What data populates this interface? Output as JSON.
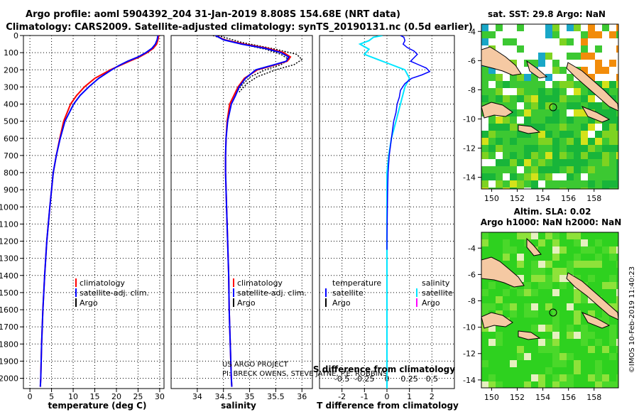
{
  "title_line1": "Argo profile: aoml 5904392_204 31-Jan-2019 8.808S 154.68E (NRT data)",
  "title_line2": "Climatology: CARS2009. Satellite-adjusted climatology: synTS_20190131.nc (0.5d earlier)",
  "colors": {
    "climatology": "#ff0000",
    "satellite": "#0000ff",
    "argo": "#000000",
    "sat_salinity": "#00e5ff",
    "argo_salinity": "#ff00ff"
  },
  "depth_axis": {
    "ticks": [
      0,
      100,
      200,
      300,
      400,
      500,
      600,
      700,
      800,
      900,
      1000,
      1100,
      1200,
      1300,
      1400,
      1500,
      1600,
      1700,
      1800,
      1900,
      2000
    ],
    "range": [
      0,
      2060
    ]
  },
  "chart_data": [
    {
      "id": "temperature",
      "type": "line",
      "xlabel": "temperature (deg C)",
      "xlim": [
        -1.5,
        31
      ],
      "xticks": [
        0,
        5,
        10,
        15,
        20,
        25,
        30
      ],
      "ylim": [
        0,
        2060
      ],
      "legend": [
        "climatology",
        "satellite-adj. clim.",
        "Argo"
      ],
      "series": [
        {
          "name": "climatology",
          "depth": [
            0,
            25,
            50,
            75,
            100,
            125,
            150,
            175,
            200,
            250,
            300,
            350,
            400,
            500,
            600,
            700,
            800,
            900,
            1000,
            1200,
            1400,
            1600,
            1800,
            2000,
            2050
          ],
          "values": [
            29.8,
            29.6,
            29.3,
            28.5,
            27.1,
            25.3,
            23.0,
            20.8,
            18.6,
            15.0,
            12.6,
            10.8,
            9.4,
            7.8,
            6.9,
            6.1,
            5.4,
            5.0,
            4.6,
            3.9,
            3.4,
            3.0,
            2.7,
            2.5,
            2.4
          ]
        },
        {
          "name": "satellite-adj. clim.",
          "depth": [
            0,
            25,
            50,
            75,
            100,
            125,
            150,
            175,
            200,
            250,
            300,
            350,
            400,
            500,
            600,
            700,
            800,
            900,
            1000,
            1200,
            1400,
            1600,
            1800,
            2000,
            2050
          ],
          "values": [
            29.6,
            29.4,
            29.0,
            28.2,
            26.8,
            25.0,
            22.6,
            20.6,
            18.9,
            15.9,
            13.6,
            11.6,
            10.1,
            8.1,
            7.0,
            6.1,
            5.4,
            5.0,
            4.6,
            3.9,
            3.4,
            3.0,
            2.7,
            2.5,
            2.4
          ]
        }
      ]
    },
    {
      "id": "salinity",
      "type": "line",
      "xlabel": "salinity",
      "xlim": [
        33.5,
        36.2
      ],
      "xticks": [
        34,
        34.5,
        35,
        35.5,
        36
      ],
      "xtick_labels": [
        "34",
        "34.5",
        "35",
        "35.5",
        "36"
      ],
      "ylim": [
        0,
        2060
      ],
      "legend": [
        "climatology",
        "satellite-adj. clim.",
        "Argo"
      ],
      "series": [
        {
          "name": "climatology",
          "depth": [
            0,
            25,
            50,
            75,
            100,
            125,
            150,
            175,
            200,
            250,
            300,
            350,
            400,
            500,
            600,
            700,
            800,
            900,
            1000,
            1200,
            1400,
            1600,
            1800,
            2000,
            2050
          ],
          "values": [
            34.35,
            34.52,
            34.9,
            35.35,
            35.65,
            35.78,
            35.72,
            35.45,
            35.15,
            34.9,
            34.78,
            34.7,
            34.62,
            34.57,
            34.55,
            34.54,
            34.54,
            34.55,
            34.56,
            34.58,
            34.6,
            34.61,
            34.63,
            34.65,
            34.66
          ]
        },
        {
          "name": "satellite-adj. clim.",
          "depth": [
            0,
            25,
            50,
            75,
            100,
            125,
            150,
            175,
            200,
            250,
            300,
            350,
            400,
            500,
            600,
            700,
            800,
            900,
            1000,
            1200,
            1400,
            1600,
            1800,
            2000,
            2050
          ],
          "values": [
            34.35,
            34.5,
            34.85,
            35.3,
            35.6,
            35.75,
            35.7,
            35.42,
            35.12,
            34.92,
            34.8,
            34.73,
            34.65,
            34.58,
            34.55,
            34.54,
            34.54,
            34.55,
            34.56,
            34.58,
            34.6,
            34.61,
            34.63,
            34.65,
            34.66
          ]
        },
        {
          "name": "climatology-spread-upper",
          "depth": [
            0,
            40,
            80,
            110,
            140,
            170,
            200,
            240,
            280,
            330
          ],
          "values": [
            34.4,
            34.85,
            35.5,
            35.9,
            36.0,
            35.85,
            35.5,
            35.15,
            34.95,
            34.8
          ]
        },
        {
          "name": "climatology-spread-lower",
          "depth": [
            0,
            40,
            80,
            110,
            140,
            170,
            200,
            240,
            280,
            330
          ],
          "values": [
            34.3,
            34.7,
            35.3,
            35.6,
            35.75,
            35.6,
            35.3,
            35.02,
            34.88,
            34.75
          ]
        }
      ]
    },
    {
      "id": "difference",
      "type": "line",
      "xlabel": "T difference from climatology",
      "xlabel_top": "S difference from climatology",
      "xlim": [
        -3,
        3
      ],
      "xticks": [
        -2,
        -1,
        0,
        1,
        2
      ],
      "top_ticks": [
        "-0.5",
        "-0.25",
        "0",
        "0.25",
        "0.5"
      ],
      "ylim": [
        0,
        2060
      ],
      "legend_left": {
        "title": "temperature",
        "items": [
          "satellite",
          "Argo"
        ]
      },
      "legend_right": {
        "title": "salinity",
        "items": [
          "satellite",
          "Argo"
        ]
      },
      "series": [
        {
          "name": "temperature satellite",
          "depth": [
            0,
            10,
            30,
            50,
            70,
            90,
            110,
            130,
            150,
            170,
            190,
            210,
            230,
            250,
            280,
            320,
            360,
            400,
            450,
            500,
            550,
            600,
            650,
            700,
            800,
            900,
            1000,
            1100,
            1200,
            1250
          ],
          "values": [
            0.6,
            0.75,
            0.8,
            0.72,
            0.9,
            1.2,
            1.35,
            1.2,
            1.05,
            1.4,
            1.75,
            1.9,
            1.55,
            1.1,
            0.8,
            0.6,
            0.55,
            0.45,
            0.4,
            0.3,
            0.25,
            0.2,
            0.15,
            0.1,
            0.05,
            0.03,
            0.02,
            0.01,
            0.0,
            0.0
          ]
        },
        {
          "name": "salinity satellite",
          "depth": [
            0,
            10,
            30,
            50,
            80,
            110,
            140,
            170,
            200,
            250,
            300,
            400,
            500,
            600,
            700,
            800,
            900,
            1000,
            1200,
            1400,
            1600,
            1800,
            2000,
            2060
          ],
          "values": [
            -0.05,
            -0.15,
            -0.2,
            -0.3,
            -0.2,
            -0.25,
            -0.1,
            0.05,
            0.2,
            0.25,
            0.2,
            0.15,
            0.1,
            0.05,
            0.02,
            0.0,
            0.0,
            0.0,
            0.0,
            0.0,
            0.0,
            0.0,
            0.0,
            0.0
          ]
        }
      ]
    }
  ],
  "credit_line1": "US ARGO PROJECT",
  "credit_line2": "PI: BRECK OWENS, STEVE JAYNE, P.E. ROBBINS",
  "map_sst": {
    "title": "sat. SST: 29.8  Argo: NaN",
    "lat_ticks": [
      "-4",
      "-6",
      "-8",
      "-10",
      "-12",
      "-14"
    ],
    "lon_ticks": [
      "150",
      "152",
      "154",
      "156",
      "158"
    ],
    "float_lat": -8.808,
    "float_lon": 154.68
  },
  "map_sla": {
    "title_line1": "Altim. SLA: 0.02",
    "title_line2": "Argo h1000: NaN  h2000: NaN",
    "lat_ticks": [
      "-4",
      "-6",
      "-8",
      "-10",
      "-12",
      "-14"
    ],
    "lon_ticks": [
      "150",
      "152",
      "154",
      "156",
      "158"
    ],
    "float_lat": -8.808,
    "float_lon": 154.68
  },
  "stamp": "©IMOS 10-Feb-2019 11:40:23"
}
